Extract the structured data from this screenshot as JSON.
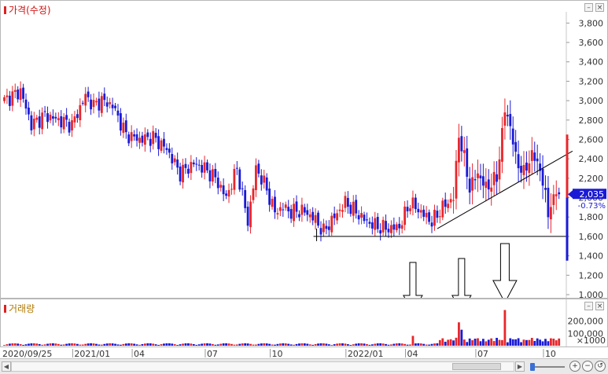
{
  "price_pane": {
    "title": "가격(수정)"
  },
  "volume_pane": {
    "title": "거래량"
  },
  "colors": {
    "up": "#e8262a",
    "down": "#1a1ad6",
    "current": "#1a1ad6",
    "trend": "#000000"
  },
  "price_axis": {
    "min": 1000,
    "max": 3900,
    "ticks": [
      "3,800",
      "3,600",
      "3,400",
      "3,200",
      "3,000",
      "2,800",
      "2,600",
      "2,400",
      "2,200",
      "2,000",
      "1,800",
      "1,600",
      "1,400",
      "1,200",
      "1,000"
    ],
    "tick_values": [
      3800,
      3600,
      3400,
      3200,
      3000,
      2800,
      2600,
      2400,
      2200,
      2000,
      1800,
      1600,
      1400,
      1200,
      1000
    ]
  },
  "current_price": {
    "label": "2,035",
    "value": 2035,
    "change": "-0.73%"
  },
  "volume_axis": {
    "max": 300000,
    "ticks": [
      "200,000",
      "100,000"
    ],
    "tick_values": [
      200000,
      100000
    ],
    "unit": "×1000"
  },
  "date_axis": {
    "labels": [
      "2020/09/25",
      "2021/01",
      "04",
      "07",
      "10",
      "2022/01",
      "04",
      "07",
      "10"
    ],
    "indices": [
      0,
      27,
      49,
      76,
      100,
      128,
      150,
      176,
      201
    ]
  },
  "annotations": {
    "support_level": 1600,
    "support_start_index": 116,
    "trendline": {
      "from_index": 160,
      "from_value": 1680,
      "to_index": 210,
      "to_value": 2480
    },
    "arrows_at_index": [
      151,
      169,
      185
    ]
  },
  "chart_data": {
    "type": "candlestick",
    "anchors": {
      "index": [
        0,
        6,
        10,
        15,
        20,
        25,
        30,
        33,
        36,
        40,
        45,
        50,
        55,
        60,
        65,
        70,
        74,
        78,
        82,
        86,
        90,
        93,
        96,
        100,
        103,
        106,
        110,
        114,
        118,
        122,
        126,
        130,
        134,
        138,
        142,
        146,
        150,
        154,
        158,
        162,
        166,
        168,
        170,
        172,
        175,
        178,
        182,
        185,
        187,
        189,
        192,
        195,
        198,
        201,
        203
      ],
      "close": [
        3000,
        3100,
        2750,
        2850,
        2800,
        2750,
        3050,
        2950,
        3000,
        2950,
        2650,
        2600,
        2620,
        2500,
        2250,
        2350,
        2300,
        2200,
        2000,
        2300,
        1750,
        2300,
        2150,
        1850,
        1900,
        1850,
        1870,
        1800,
        1650,
        1800,
        1950,
        1850,
        1750,
        1700,
        1680,
        1700,
        1950,
        1850,
        1750,
        1900,
        2000,
        2650,
        2400,
        2100,
        2250,
        2100,
        2200,
        2900,
        2750,
        2400,
        2250,
        2450,
        2300,
        1850,
        2035
      ]
    },
    "volume_spikes_index": [
      151,
      168,
      169,
      185
    ],
    "volume_spikes_values": [
      80000,
      190000,
      130000,
      290000
    ]
  }
}
